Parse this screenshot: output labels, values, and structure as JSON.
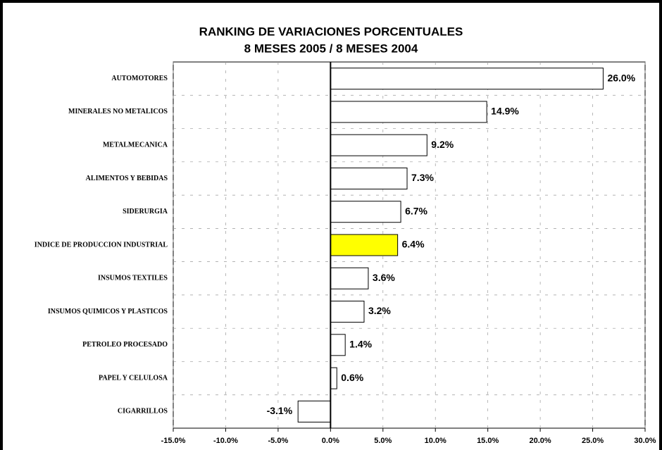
{
  "chart_data": {
    "type": "hbar",
    "title": "RANKING DE VARIACIONES PORCENTUALES",
    "subtitle": "8 MESES 2005 / 8 MESES 2004",
    "categories": [
      "AUTOMOTORES",
      "MINERALES NO METALICOS",
      "METALMECANICA",
      "ALIMENTOS Y BEBIDAS",
      "SIDERURGIA",
      "INDICE DE PRODUCCION INDUSTRIAL",
      "INSUMOS TEXTILES",
      "INSUMOS QUIMICOS Y PLASTICOS",
      "PETROLEO PROCESADO",
      "PAPEL Y CELULOSA",
      "CIGARRILLOS"
    ],
    "values": [
      26.0,
      14.9,
      9.2,
      7.3,
      6.7,
      6.4,
      3.6,
      3.2,
      1.4,
      0.6,
      -3.1
    ],
    "value_labels": [
      "26.0%",
      "14.9%",
      "9.2%",
      "7.3%",
      "6.7%",
      "6.4%",
      "3.6%",
      "3.2%",
      "1.4%",
      "0.6%",
      "-3.1%"
    ],
    "colors": [
      "#ffffff",
      "#ffffff",
      "#ffffff",
      "#ffffff",
      "#ffffff",
      "#ffff00",
      "#ffffff",
      "#ffffff",
      "#ffffff",
      "#ffffff",
      "#ffffff"
    ],
    "xlim": [
      -15,
      30
    ],
    "xticks": [
      {
        "value": -15,
        "label": "-15.0%"
      },
      {
        "value": -10,
        "label": "-10.0%"
      },
      {
        "value": -5,
        "label": "-5.0%"
      },
      {
        "value": 0,
        "label": "0.0%"
      },
      {
        "value": 5,
        "label": "5.0%"
      },
      {
        "value": 10,
        "label": "10.0%"
      },
      {
        "value": 15,
        "label": "15.0%"
      },
      {
        "value": 20,
        "label": "20.0%"
      },
      {
        "value": 25,
        "label": "25.0%"
      },
      {
        "value": 30,
        "label": "30.0%"
      }
    ],
    "grid": true
  }
}
